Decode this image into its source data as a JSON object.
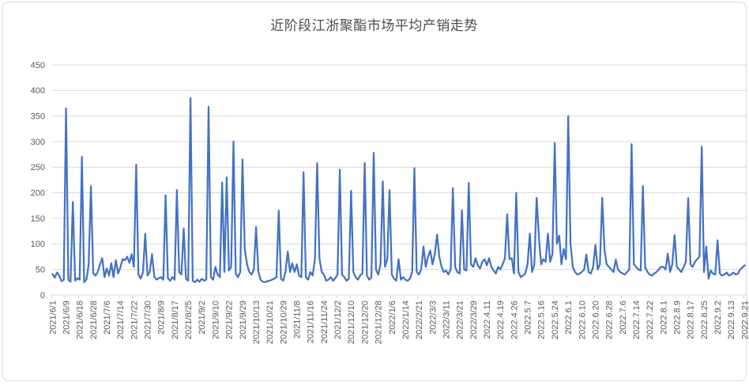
{
  "title": "近阶段江浙聚酯市场平均产销走势",
  "colors": {
    "line": "#4472C4",
    "grid": "#D9D9D9",
    "tick": "#D0D0D0",
    "axis_text": "#595959",
    "title_text": "#4D4D4D",
    "background": "#FFFFFF",
    "border": "#D9D9D9"
  },
  "chart_data": {
    "type": "line",
    "title": "近阶段江浙聚酯市场平均产销走势",
    "xlabel": "",
    "ylabel": "",
    "ylim": [
      0,
      450
    ],
    "y_ticks": [
      0,
      50,
      100,
      150,
      200,
      250,
      300,
      350,
      400,
      450
    ],
    "grid": true,
    "legend": "none",
    "x_label_rotation": -90,
    "label_interval": 6,
    "x_labels": [
      "2021/6/1",
      "2021/6/9",
      "2021/6/18",
      "2021/6/28",
      "2021/7/6",
      "2021/7/14",
      "2021/7/22",
      "2021/7/30",
      "2021/8/9",
      "2021/8/17",
      "2021/8/25",
      "2021/9/2",
      "2021/9/10",
      "2021/9/22",
      "2021/9/29",
      "2021/10/13",
      "2021/10/21",
      "2021/10/29",
      "2021/11/8",
      "2021/11/16",
      "2021/11/24",
      "2021/12/2",
      "2021/12/10",
      "2021/12/20",
      "2021/12/28",
      "2022/1/6",
      "2022/1/14",
      "2022/2/21",
      "2022/3/3",
      "2022/3/11",
      "2022/3/21",
      "2022/3/29",
      "2022.4.11",
      "2022.4.19",
      "2022.4.26",
      "2022.5.7",
      "2022.5.16",
      "2022.5.24",
      "2022.6.1",
      "2022.6.10",
      "2022.6.20",
      "2022.6.28",
      "2022.7.6",
      "2022.7.14",
      "2022.7.22",
      "2022.8.1",
      "2022.8.9",
      "2022.8.17",
      "2022.8.25",
      "2022.9.2",
      "2022.9.13",
      "2022.9.21"
    ],
    "values": [
      41,
      34,
      44,
      38,
      27,
      30,
      365,
      30,
      26,
      182,
      28,
      33,
      30,
      270,
      25,
      30,
      59,
      213,
      42,
      38,
      45,
      60,
      72,
      35,
      52,
      38,
      62,
      35,
      68,
      42,
      54,
      70,
      68,
      75,
      63,
      80,
      55,
      255,
      40,
      32,
      45,
      120,
      38,
      45,
      80,
      36,
      30,
      33,
      35,
      30,
      195,
      33,
      28,
      35,
      30,
      205,
      45,
      40,
      130,
      32,
      28,
      385,
      28,
      25,
      30,
      26,
      32,
      28,
      30,
      368,
      35,
      30,
      55,
      40,
      35,
      220,
      45,
      230,
      48,
      55,
      300,
      42,
      35,
      45,
      265,
      90,
      60,
      45,
      40,
      50,
      133,
      46,
      30,
      26,
      25,
      27,
      28,
      30,
      32,
      35,
      165,
      32,
      28,
      45,
      85,
      45,
      62,
      45,
      60,
      38,
      35,
      240,
      35,
      30,
      45,
      38,
      70,
      258,
      72,
      45,
      40,
      28,
      30,
      35,
      28,
      33,
      40,
      245,
      40,
      35,
      28,
      32,
      204,
      45,
      35,
      30,
      38,
      42,
      258,
      38,
      30,
      35,
      278,
      50,
      40,
      60,
      222,
      55,
      70,
      205,
      40,
      32,
      28,
      70,
      30,
      35,
      30,
      28,
      32,
      45,
      248,
      45,
      40,
      50,
      95,
      55,
      75,
      87,
      60,
      80,
      118,
      75,
      55,
      45,
      48,
      40,
      50,
      209,
      55,
      45,
      42,
      166,
      50,
      48,
      219,
      60,
      55,
      72,
      58,
      52,
      65,
      70,
      58,
      72,
      55,
      48,
      42,
      55,
      50,
      60,
      72,
      158,
      70,
      72,
      42,
      200,
      45,
      35,
      38,
      42,
      60,
      120,
      45,
      60,
      190,
      115,
      60,
      70,
      65,
      120,
      65,
      80,
      297,
      100,
      116,
      60,
      90,
      70,
      350,
      100,
      55,
      45,
      40,
      42,
      45,
      50,
      79,
      45,
      42,
      55,
      98,
      50,
      60,
      190,
      88,
      60,
      55,
      50,
      45,
      69,
      50,
      45,
      42,
      40,
      45,
      50,
      295,
      60,
      55,
      50,
      48,
      213,
      54,
      45,
      40,
      38,
      42,
      45,
      50,
      55,
      55,
      50,
      81,
      45,
      60,
      117,
      55,
      50,
      45,
      55,
      65,
      190,
      60,
      55,
      65,
      70,
      75,
      290,
      45,
      95,
      32,
      48,
      42,
      40,
      107,
      42,
      38,
      40,
      44,
      38,
      40,
      44,
      40,
      42,
      50,
      54,
      58
    ]
  }
}
